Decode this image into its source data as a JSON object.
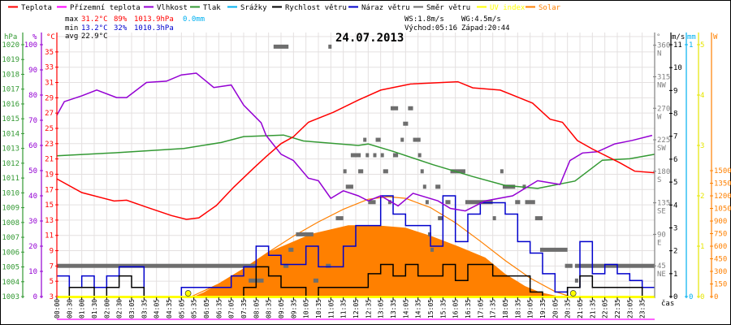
{
  "legend": [
    {
      "label": "Teplota",
      "color": "#ff0000"
    },
    {
      "label": "Přízemní teplota",
      "color": "#ff00ff"
    },
    {
      "label": "Vlhkost",
      "color": "#9400d3"
    },
    {
      "label": "Tlak",
      "color": "#339933"
    },
    {
      "label": "Srážky",
      "color": "#00b0f0"
    },
    {
      "label": "Rychlost větru",
      "color": "#000000"
    },
    {
      "label": "Náraz větru",
      "color": "#0000cc"
    },
    {
      "label": "Směr větru",
      "color": "#6e6e6e"
    },
    {
      "label": "UV index",
      "color": "#ffff00"
    },
    {
      "label": "Solar",
      "color": "#ff8000"
    }
  ],
  "stats": {
    "max": {
      "label": "max",
      "temp": "31.2°C",
      "hum": "89%",
      "press": "1013.9hPa",
      "rain": "0.0mm"
    },
    "min": {
      "label": "min",
      "temp": "13.2°C",
      "hum": "32%",
      "press": "1010.3hPa"
    },
    "avg": {
      "label": "avg",
      "temp": "22.9°C"
    }
  },
  "wind_info": {
    "ws": "WS:1.8m/s",
    "wg": "WG:4.5m/s",
    "sunrise": "Východ:05:16",
    "sunset": "Západ:20:44"
  },
  "chart_data": {
    "type": "line",
    "title": "24.07.2013",
    "xlabel": "čas",
    "x_tick_labels": [
      "00:00",
      "00:30",
      "01:00",
      "01:30",
      "02:00",
      "02:30",
      "03:05",
      "03:35",
      "04:05",
      "04:35",
      "05:05",
      "05:35",
      "06:05",
      "06:35",
      "07:05",
      "07:35",
      "08:05",
      "08:35",
      "09:05",
      "09:35",
      "10:05",
      "10:35",
      "11:05",
      "11:35",
      "12:05",
      "12:35",
      "13:05",
      "13:35",
      "14:05",
      "14:35",
      "15:05",
      "15:35",
      "16:05",
      "16:35",
      "17:05",
      "17:35",
      "18:05",
      "18:35",
      "19:05",
      "19:35",
      "20:05",
      "20:35",
      "21:05",
      "21:35",
      "22:05",
      "22:35",
      "23:05",
      "23:35"
    ],
    "axes": {
      "pressure": {
        "unit": "hPa",
        "range": [
          1003,
          1020
        ],
        "ticks": [
          1003,
          1004,
          1005,
          1006,
          1007,
          1008,
          1009,
          1010,
          1011,
          1012,
          1013,
          1014,
          1015,
          1016,
          1017,
          1018,
          1019,
          1020
        ]
      },
      "humidity": {
        "unit": "%",
        "range": [
          0,
          100
        ],
        "ticks": [
          0,
          10,
          20,
          30,
          40,
          50,
          60,
          70,
          80,
          90,
          100
        ]
      },
      "temperature": {
        "unit": "°C",
        "range": [
          3,
          36
        ],
        "ticks": [
          3,
          5,
          7,
          9,
          11,
          13,
          15,
          17,
          19,
          21,
          23,
          25,
          27,
          29,
          31,
          33,
          35
        ]
      },
      "direction": {
        "unit": "°",
        "range": [
          0,
          360
        ],
        "ticks": [
          {
            "v": 45,
            "c": "NE"
          },
          {
            "v": 90,
            "c": "E"
          },
          {
            "v": 135,
            "c": "SE"
          },
          {
            "v": 180,
            "c": "S"
          },
          {
            "v": 225,
            "c": "SW"
          },
          {
            "v": 270,
            "c": "W"
          },
          {
            "v": 315,
            "c": "NW"
          },
          {
            "v": 360,
            "c": "N"
          }
        ]
      },
      "wind": {
        "unit": "m/s",
        "range": [
          0,
          11
        ],
        "ticks": [
          0,
          1,
          2,
          3,
          4,
          5,
          6,
          7,
          8,
          9,
          10,
          11
        ]
      },
      "rain": {
        "unit": "mm",
        "range": [
          0,
          1
        ],
        "ticks": [
          0,
          1
        ]
      },
      "uv": {
        "unit": "",
        "range": [
          0,
          5
        ],
        "ticks": [
          0,
          1,
          2,
          3,
          4,
          5
        ]
      },
      "solar": {
        "unit": "W",
        "range": [
          0,
          3000
        ],
        "ticks": [
          0,
          150,
          300,
          450,
          600,
          750,
          900,
          1050,
          1200,
          1350,
          1500
        ]
      }
    },
    "series": {
      "temperature": {
        "name": "Teplota",
        "x_hours": [
          0,
          1,
          2.3,
          2.8,
          3.6,
          4.6,
          5.2,
          5.7,
          6.4,
          7.1,
          7.9,
          8.4,
          9.0,
          9.5,
          10.1,
          11.1,
          12.1,
          13.0,
          14.2,
          16.1,
          16.7,
          17.8,
          19.1,
          19.8,
          20.3,
          20.9,
          21.5,
          22.6,
          23.2,
          24
        ],
        "values": [
          18.4,
          16.6,
          15.5,
          15.6,
          14.7,
          13.6,
          13.1,
          13.3,
          14.9,
          17.3,
          19.8,
          21.3,
          23.0,
          23.9,
          25.8,
          27.1,
          28.7,
          30.0,
          30.8,
          31.1,
          30.3,
          30.0,
          28.3,
          26.2,
          25.8,
          23.4,
          22.3,
          20.5,
          19.4,
          19.2
        ]
      },
      "humidity": {
        "name": "Vlhkost",
        "x_hours": [
          0,
          0.3,
          1.0,
          1.6,
          2.4,
          2.8,
          3.6,
          4.4,
          5.0,
          5.6,
          6.3,
          7.0,
          7.5,
          8.2,
          8.4,
          9.0,
          9.5,
          10.1,
          10.5,
          11.0,
          11.5,
          12.1,
          12.5,
          13.0,
          13.7,
          14.3,
          15.3,
          15.8,
          16.4,
          17.2,
          18.3,
          19.3,
          20.2,
          20.6,
          21.1,
          21.7,
          22.4,
          23.1,
          23.9
        ],
        "values": [
          72,
          77.4,
          79.7,
          82,
          79,
          79,
          85,
          85.5,
          88,
          88.7,
          83,
          84,
          76,
          69,
          64,
          56.5,
          54,
          47,
          46,
          39,
          42,
          40,
          38,
          40,
          36,
          41,
          38,
          35,
          34,
          38,
          40,
          46,
          44.5,
          54,
          57,
          57.5,
          60.6,
          62,
          64
        ]
      },
      "pressure": {
        "name": "Tlak",
        "x_hours": [
          0,
          2.3,
          5.1,
          6.6,
          7.5,
          9.1,
          9.9,
          12.1,
          12.5,
          13.5,
          15.1,
          16.7,
          18.0,
          19.3,
          20.8,
          21.9,
          23.0,
          24
        ],
        "values": [
          1012.5,
          1012.7,
          1013.0,
          1013.4,
          1013.8,
          1013.9,
          1013.5,
          1013.2,
          1013.3,
          1012.8,
          1011.9,
          1011.1,
          1010.5,
          1010.3,
          1010.8,
          1012.2,
          1012.3,
          1012.6
        ]
      },
      "wind_gust": {
        "name": "Náraz větru",
        "step_hours": 0.5,
        "values": [
          0.9,
          0.4,
          0.9,
          0.4,
          0.9,
          1.3,
          1.3,
          0,
          0,
          0,
          0.4,
          0.4,
          0.4,
          0.4,
          0.9,
          1.3,
          2.2,
          1.8,
          1.4,
          1.4,
          2.2,
          1.3,
          1.3,
          2.2,
          3.1,
          3.1,
          4.4,
          3.6,
          3.1,
          3.1,
          2.2,
          4.4,
          2.4,
          3.6,
          4.1,
          4.1,
          3.6,
          2.4,
          1.9,
          1.0,
          0.2,
          0.4,
          2.4,
          1.0,
          1.4,
          1.0,
          0.7,
          0.4,
          0.4
        ]
      },
      "wind_speed": {
        "name": "Rychlost větru",
        "step_hours": 0.5,
        "values": [
          0,
          0.4,
          0.4,
          0,
          0.4,
          0.9,
          0.4,
          0,
          0,
          0,
          0,
          0,
          0,
          0,
          0,
          0.4,
          1.3,
          0.9,
          0.4,
          0.4,
          0,
          0.4,
          0.4,
          0.4,
          0.4,
          1.0,
          1.4,
          0.9,
          1.4,
          0.9,
          0.9,
          1.4,
          0.7,
          1.4,
          1.4,
          0.9,
          0.9,
          0.9,
          0.2,
          0,
          0,
          0.4,
          0.9,
          0.4,
          0.4,
          0.4,
          0.4,
          0,
          0
        ]
      },
      "solar_measured": {
        "name": "Solar",
        "x_hours": [
          5.5,
          5.9,
          7.0,
          8.5,
          10.2,
          11.7,
          12.8,
          14.0,
          15.0,
          16.1,
          17.2,
          18.0,
          18.8,
          19.4,
          20.2
        ],
        "values": [
          0,
          50,
          240,
          530,
          745,
          850,
          850,
          820,
          725,
          600,
          465,
          270,
          125,
          50,
          0
        ]
      },
      "solar_theoretical": {
        "name": "Solar max",
        "x_hours": [
          5.4,
          6.5,
          7.5,
          8.5,
          9.5,
          10.5,
          11.5,
          12.5,
          13.3,
          14.0,
          15.0,
          16.0,
          17.0,
          18.0,
          19.0,
          20.0,
          20.6
        ],
        "values": [
          0,
          150,
          330,
          530,
          720,
          890,
          1040,
          1160,
          1190,
          1170,
          1060,
          880,
          660,
          430,
          220,
          60,
          0
        ]
      },
      "uv_index": {
        "name": "UV index",
        "x_hours": [
          0,
          24
        ],
        "values": [
          0,
          0
        ]
      },
      "rain": {
        "name": "Srážky",
        "x_hours": [
          0,
          24
        ],
        "values": [
          0,
          0
        ]
      },
      "sun_events": {
        "x_hours": [
          5.27,
          20.73
        ]
      },
      "wind_direction": {
        "name": "Směr větru",
        "segments": [
          [
            0,
            8.0,
            45
          ],
          [
            8.7,
            9.3,
            358
          ],
          [
            10.9,
            11.0,
            358
          ],
          [
            11.8,
            12.2,
            203
          ],
          [
            11.5,
            11.6,
            180
          ],
          [
            11.6,
            11.9,
            158
          ],
          [
            11.2,
            11.5,
            113
          ],
          [
            9.6,
            10.3,
            90
          ],
          [
            9.3,
            9.5,
            68
          ],
          [
            9.1,
            9.3,
            45
          ],
          [
            7.7,
            8.3,
            24
          ],
          [
            10.3,
            10.5,
            24
          ],
          [
            10.8,
            11.0,
            45
          ],
          [
            13.4,
            13.7,
            270
          ],
          [
            14.1,
            14.3,
            270
          ],
          [
            13.9,
            14.1,
            248
          ],
          [
            12.3,
            12.4,
            225
          ],
          [
            12.8,
            13.0,
            225
          ],
          [
            13.8,
            13.9,
            225
          ],
          [
            14.3,
            14.6,
            225
          ],
          [
            12.4,
            12.5,
            203
          ],
          [
            12.7,
            12.8,
            203
          ],
          [
            13.0,
            13.1,
            203
          ],
          [
            13.5,
            13.7,
            203
          ],
          [
            14.5,
            14.6,
            203
          ],
          [
            12.1,
            12.3,
            180
          ],
          [
            13.1,
            13.3,
            180
          ],
          [
            14.6,
            14.7,
            180
          ],
          [
            15.8,
            16.4,
            180
          ],
          [
            17.8,
            17.9,
            180
          ],
          [
            14.7,
            14.8,
            158
          ],
          [
            15.2,
            15.4,
            158
          ],
          [
            17.9,
            18.4,
            158
          ],
          [
            18.7,
            18.8,
            158
          ],
          [
            12.5,
            12.8,
            136
          ],
          [
            13.3,
            13.4,
            136
          ],
          [
            14.8,
            14.9,
            136
          ],
          [
            15.6,
            15.8,
            136
          ],
          [
            16.4,
            17.5,
            136
          ],
          [
            18.4,
            18.6,
            136
          ],
          [
            18.8,
            19.2,
            136
          ],
          [
            15.3,
            15.5,
            113
          ],
          [
            17.5,
            17.6,
            113
          ],
          [
            19.2,
            19.5,
            113
          ],
          [
            14.9,
            15.0,
            90
          ],
          [
            15.0,
            15.1,
            68
          ],
          [
            19.4,
            20.5,
            68
          ],
          [
            20.4,
            20.7,
            45
          ],
          [
            20.8,
            24,
            45
          ],
          [
            20.8,
            20.9,
            24
          ]
        ]
      }
    }
  }
}
